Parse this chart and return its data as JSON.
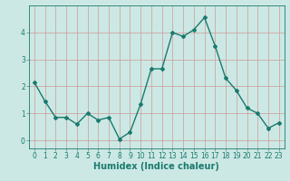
{
  "x": [
    0,
    1,
    2,
    3,
    4,
    5,
    6,
    7,
    8,
    9,
    10,
    11,
    12,
    13,
    14,
    15,
    16,
    17,
    18,
    19,
    20,
    21,
    22,
    23
  ],
  "y": [
    2.15,
    1.45,
    0.85,
    0.85,
    0.6,
    1.0,
    0.75,
    0.85,
    0.05,
    0.3,
    1.35,
    2.65,
    2.65,
    4.0,
    3.85,
    4.1,
    4.55,
    3.5,
    2.3,
    1.85,
    1.2,
    1.0,
    0.45,
    0.65
  ],
  "line_color": "#1a7a6e",
  "marker": "D",
  "marker_size": 2.0,
  "linewidth": 1.0,
  "xlabel": "Humidex (Indice chaleur)",
  "xlim": [
    -0.5,
    23.5
  ],
  "ylim": [
    -0.3,
    5.0
  ],
  "yticks": [
    0,
    1,
    2,
    3,
    4
  ],
  "xticks": [
    0,
    1,
    2,
    3,
    4,
    5,
    6,
    7,
    8,
    9,
    10,
    11,
    12,
    13,
    14,
    15,
    16,
    17,
    18,
    19,
    20,
    21,
    22,
    23
  ],
  "bg_color": "#cce8e4",
  "grid_color": "#cc9999",
  "axis_color": "#1a7a6e",
  "tick_color": "#1a7a6e",
  "label_color": "#1a7a6e",
  "xlabel_fontsize": 7,
  "tick_fontsize": 5.5
}
